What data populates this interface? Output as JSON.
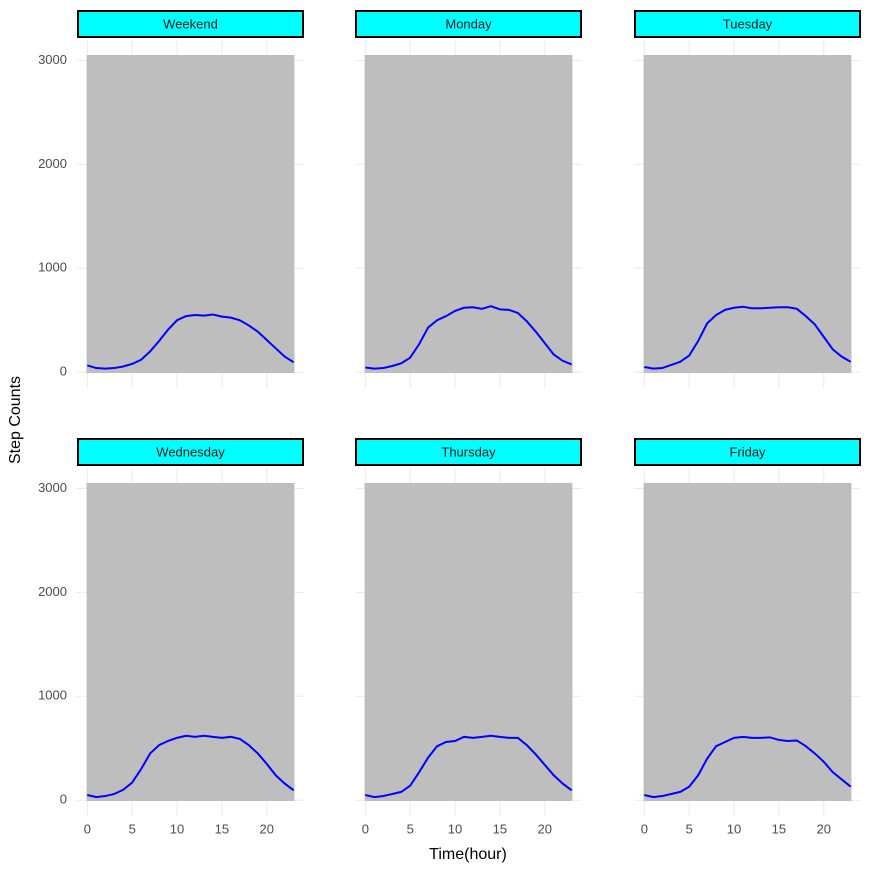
{
  "axis_titles": {
    "x": "Time(hour)",
    "y": "Step Counts"
  },
  "chart_data": [
    {
      "type": "line",
      "title": "Weekend",
      "strip_color": "#00ffff",
      "x": [
        0,
        1,
        2,
        3,
        4,
        5,
        6,
        7,
        8,
        9,
        10,
        11,
        12,
        13,
        14,
        15,
        16,
        17,
        18,
        19,
        20,
        21,
        22,
        23
      ],
      "xlim": [
        -1.15,
        24.15
      ],
      "ylim": [
        -152,
        3197
      ],
      "xticks": [
        0,
        5,
        10,
        15,
        20
      ],
      "yticks": [
        0,
        1000,
        2000,
        3000
      ],
      "x_tick_labels": false,
      "y_tick_labels": true,
      "grid": true,
      "series": [
        {
          "style": "area",
          "color": "#bebebe",
          "values": [
            3045,
            3045,
            3045,
            3045,
            3045,
            3045,
            3045,
            3045,
            3045,
            3045,
            3045,
            3045,
            3045,
            3045,
            3045,
            3045,
            3045,
            3045,
            3045,
            3045,
            3045,
            3045,
            3045,
            3045
          ]
        },
        {
          "style": "line",
          "color": "#0000ff",
          "values": [
            65,
            40,
            35,
            40,
            55,
            80,
            120,
            200,
            300,
            410,
            500,
            540,
            550,
            545,
            555,
            535,
            525,
            500,
            450,
            390,
            310,
            230,
            150,
            95
          ]
        }
      ]
    },
    {
      "type": "line",
      "title": "Monday",
      "strip_color": "#00ffff",
      "x": [
        0,
        1,
        2,
        3,
        4,
        5,
        6,
        7,
        8,
        9,
        10,
        11,
        12,
        13,
        14,
        15,
        16,
        17,
        18,
        19,
        20,
        21,
        22,
        23
      ],
      "xlim": [
        -1.15,
        24.15
      ],
      "ylim": [
        -152,
        3197
      ],
      "xticks": [
        0,
        5,
        10,
        15,
        20
      ],
      "yticks": [
        0,
        1000,
        2000,
        3000
      ],
      "x_tick_labels": false,
      "y_tick_labels": false,
      "grid": true,
      "series": [
        {
          "style": "area",
          "color": "#bebebe",
          "values": [
            3045,
            3045,
            3045,
            3045,
            3045,
            3045,
            3045,
            3045,
            3045,
            3045,
            3045,
            3045,
            3045,
            3045,
            3045,
            3045,
            3045,
            3045,
            3045,
            3045,
            3045,
            3045,
            3045,
            3045
          ]
        },
        {
          "style": "line",
          "color": "#0000ff",
          "values": [
            45,
            35,
            40,
            60,
            85,
            140,
            270,
            430,
            500,
            540,
            590,
            620,
            625,
            610,
            635,
            605,
            600,
            570,
            490,
            390,
            280,
            170,
            110,
            75
          ]
        }
      ]
    },
    {
      "type": "line",
      "title": "Tuesday",
      "strip_color": "#00ffff",
      "x": [
        0,
        1,
        2,
        3,
        4,
        5,
        6,
        7,
        8,
        9,
        10,
        11,
        12,
        13,
        14,
        15,
        16,
        17,
        18,
        19,
        20,
        21,
        22,
        23
      ],
      "xlim": [
        -1.15,
        24.15
      ],
      "ylim": [
        -152,
        3197
      ],
      "xticks": [
        0,
        5,
        10,
        15,
        20
      ],
      "yticks": [
        0,
        1000,
        2000,
        3000
      ],
      "x_tick_labels": false,
      "y_tick_labels": false,
      "grid": true,
      "series": [
        {
          "style": "area",
          "color": "#bebebe",
          "values": [
            3045,
            3045,
            3045,
            3045,
            3045,
            3045,
            3045,
            3045,
            3045,
            3045,
            3045,
            3045,
            3045,
            3045,
            3045,
            3045,
            3045,
            3045,
            3045,
            3045,
            3045,
            3045,
            3045,
            3045
          ]
        },
        {
          "style": "line",
          "color": "#0000ff",
          "values": [
            50,
            35,
            40,
            70,
            100,
            160,
            300,
            470,
            550,
            600,
            620,
            630,
            615,
            615,
            620,
            625,
            625,
            610,
            540,
            460,
            340,
            220,
            150,
            100
          ]
        }
      ]
    },
    {
      "type": "line",
      "title": "Wednesday",
      "strip_color": "#00ffff",
      "x": [
        0,
        1,
        2,
        3,
        4,
        5,
        6,
        7,
        8,
        9,
        10,
        11,
        12,
        13,
        14,
        15,
        16,
        17,
        18,
        19,
        20,
        21,
        22,
        23
      ],
      "xlim": [
        -1.15,
        24.15
      ],
      "ylim": [
        -152,
        3197
      ],
      "xticks": [
        0,
        5,
        10,
        15,
        20
      ],
      "yticks": [
        0,
        1000,
        2000,
        3000
      ],
      "x_tick_labels": true,
      "y_tick_labels": true,
      "grid": true,
      "series": [
        {
          "style": "area",
          "color": "#bebebe",
          "values": [
            3045,
            3045,
            3045,
            3045,
            3045,
            3045,
            3045,
            3045,
            3045,
            3045,
            3045,
            3045,
            3045,
            3045,
            3045,
            3045,
            3045,
            3045,
            3045,
            3045,
            3045,
            3045,
            3045,
            3045
          ]
        },
        {
          "style": "line",
          "color": "#0000ff",
          "values": [
            50,
            30,
            40,
            60,
            100,
            170,
            300,
            450,
            530,
            570,
            600,
            620,
            610,
            620,
            610,
            600,
            610,
            590,
            530,
            450,
            350,
            240,
            160,
            95
          ]
        }
      ]
    },
    {
      "type": "line",
      "title": "Thursday",
      "strip_color": "#00ffff",
      "x": [
        0,
        1,
        2,
        3,
        4,
        5,
        6,
        7,
        8,
        9,
        10,
        11,
        12,
        13,
        14,
        15,
        16,
        17,
        18,
        19,
        20,
        21,
        22,
        23
      ],
      "xlim": [
        -1.15,
        24.15
      ],
      "ylim": [
        -152,
        3197
      ],
      "xticks": [
        0,
        5,
        10,
        15,
        20
      ],
      "yticks": [
        0,
        1000,
        2000,
        3000
      ],
      "x_tick_labels": true,
      "y_tick_labels": false,
      "grid": true,
      "series": [
        {
          "style": "area",
          "color": "#bebebe",
          "values": [
            3045,
            3045,
            3045,
            3045,
            3045,
            3045,
            3045,
            3045,
            3045,
            3045,
            3045,
            3045,
            3045,
            3045,
            3045,
            3045,
            3045,
            3045,
            3045,
            3045,
            3045,
            3045,
            3045,
            3045
          ]
        },
        {
          "style": "line",
          "color": "#0000ff",
          "values": [
            50,
            30,
            40,
            60,
            80,
            140,
            270,
            410,
            520,
            560,
            570,
            610,
            600,
            610,
            620,
            610,
            600,
            600,
            530,
            440,
            340,
            240,
            160,
            95
          ]
        }
      ]
    },
    {
      "type": "line",
      "title": "Friday",
      "strip_color": "#00ffff",
      "x": [
        0,
        1,
        2,
        3,
        4,
        5,
        6,
        7,
        8,
        9,
        10,
        11,
        12,
        13,
        14,
        15,
        16,
        17,
        18,
        19,
        20,
        21,
        22,
        23
      ],
      "xlim": [
        -1.15,
        24.15
      ],
      "ylim": [
        -152,
        3197
      ],
      "xticks": [
        0,
        5,
        10,
        15,
        20
      ],
      "yticks": [
        0,
        1000,
        2000,
        3000
      ],
      "x_tick_labels": true,
      "y_tick_labels": false,
      "grid": true,
      "series": [
        {
          "style": "area",
          "color": "#bebebe",
          "values": [
            3045,
            3045,
            3045,
            3045,
            3045,
            3045,
            3045,
            3045,
            3045,
            3045,
            3045,
            3045,
            3045,
            3045,
            3045,
            3045,
            3045,
            3045,
            3045,
            3045,
            3045,
            3045,
            3045,
            3045
          ]
        },
        {
          "style": "line",
          "color": "#0000ff",
          "values": [
            50,
            30,
            40,
            60,
            80,
            130,
            240,
            400,
            520,
            560,
            600,
            610,
            600,
            600,
            605,
            580,
            570,
            575,
            520,
            450,
            370,
            270,
            200,
            130
          ]
        }
      ]
    }
  ]
}
